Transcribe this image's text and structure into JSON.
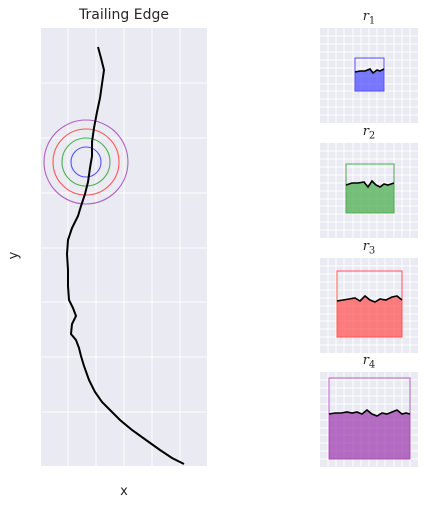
{
  "main_plot": {
    "title": "Trailing Edge",
    "xlabel": "x",
    "ylabel": "y"
  },
  "circle_colors": [
    "#5050ff",
    "#4caf50",
    "#ff5555",
    "#b060c0"
  ],
  "panels": [
    {
      "symbol": "r",
      "index": "1",
      "color": "#5050ff"
    },
    {
      "symbol": "r",
      "index": "2",
      "color": "#4caf50"
    },
    {
      "symbol": "r",
      "index": "3",
      "color": "#ff5555"
    },
    {
      "symbol": "r",
      "index": "4",
      "color": "#b060c0"
    }
  ]
}
